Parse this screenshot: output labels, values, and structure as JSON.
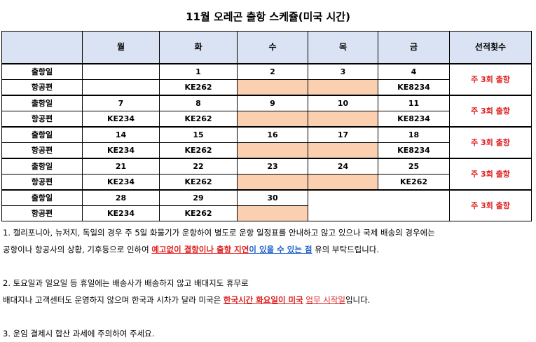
{
  "title": "11월 오레곤 출항 스케쥴(미국 시간)",
  "table": {
    "headers": [
      "",
      "월",
      "화",
      "수",
      "목",
      "금",
      "선적횟수"
    ],
    "row_labels": {
      "departure": "출항일",
      "flight": "항공편"
    },
    "weeks": [
      {
        "dates": [
          "",
          "1",
          "2",
          "3",
          "4"
        ],
        "flights": [
          "",
          "KE262",
          "",
          "",
          "KE8234"
        ],
        "frequency": "주 3회 출항"
      },
      {
        "dates": [
          "7",
          "8",
          "9",
          "10",
          "11"
        ],
        "flights": [
          "KE234",
          "KE262",
          "",
          "",
          "KE8234"
        ],
        "frequency": "주 3회 출항"
      },
      {
        "dates": [
          "14",
          "15",
          "16",
          "17",
          "18"
        ],
        "flights": [
          "KE234",
          "KE262",
          "",
          "",
          "KE8234"
        ],
        "frequency": "주 3회 출항"
      },
      {
        "dates": [
          "21",
          "22",
          "23",
          "24",
          "25"
        ],
        "flights": [
          "KE234",
          "KE262",
          "",
          "",
          "KE262"
        ],
        "frequency": "주 3회 출항"
      },
      {
        "dates": [
          "28",
          "29",
          "30",
          "",
          ""
        ],
        "flights": [
          "KE234",
          "KE262",
          "",
          "",
          ""
        ],
        "frequency": "주 3회 출항"
      }
    ],
    "highlight_color": "#fbd0b1",
    "header_color": "#dae3f3"
  },
  "notes": {
    "n1_line1": "1. 캘리포니아, 뉴저지, 독일의 경우 주 5일 화물기가 운항하여 별도로 운항 일정표를 안내하고 않고 있으나 국제 배송의 경우에는",
    "n1_line2_a": "공항이나 항공사의 상황, 기후등으로 인하여 ",
    "n1_line2_red": "예고없이 결항이나 출항 지연",
    "n1_line2_blue": "이 있을 수 있는 점",
    "n1_line2_end": " 유의 부탁드립니다.",
    "n2_line1": "2. 토요일과 일요일 등 휴일에는 배송사가 배송하지 않고 배대지도 휴무로",
    "n2_line2_a": "배대지나 고객센터도 운영하지 않으며 한국과 시차가 달라 미국은 ",
    "n2_line2_red": "한국시간 화요일이 미국",
    "n2_line2_sp": " ",
    "n2_line2_red2": "업무 시작일",
    "n2_line2_end": "입니다.",
    "n3": "3. 운임 결제시 합산 과세에 주의하여 주세요."
  }
}
